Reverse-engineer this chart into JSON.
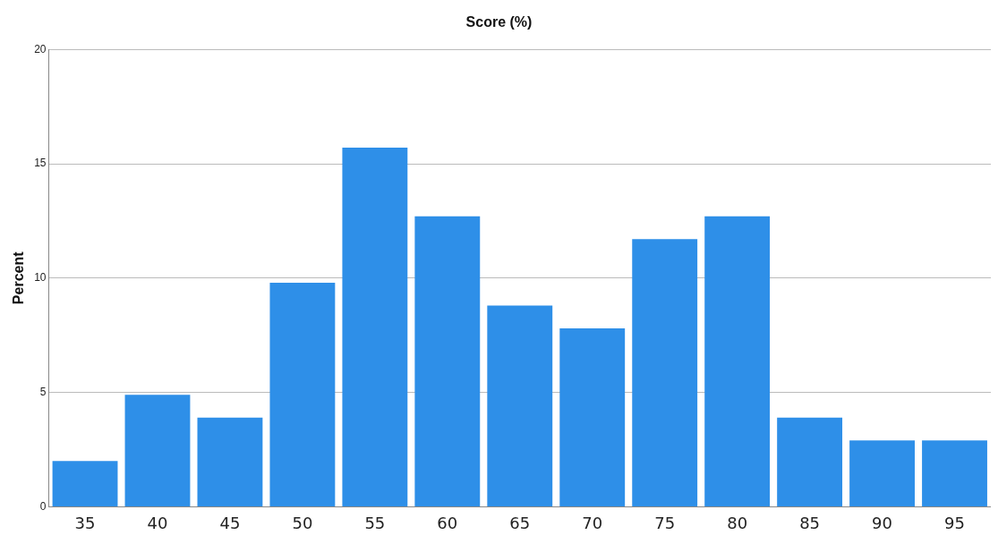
{
  "chart_data": {
    "type": "bar",
    "title": "Score (%)",
    "ylabel": "Percent",
    "categories": [
      "35",
      "40",
      "45",
      "50",
      "55",
      "60",
      "65",
      "70",
      "75",
      "80",
      "85",
      "90",
      "95"
    ],
    "values": [
      2,
      4.9,
      3.9,
      9.8,
      15.7,
      12.7,
      8.8,
      7.8,
      11.7,
      12.7,
      3.9,
      2.9,
      2.9
    ],
    "color": "#2e8fe8",
    "ylim": [
      0,
      20
    ],
    "yticks": [
      0,
      5,
      10,
      15,
      20
    ],
    "grid": "y",
    "legend": false
  }
}
